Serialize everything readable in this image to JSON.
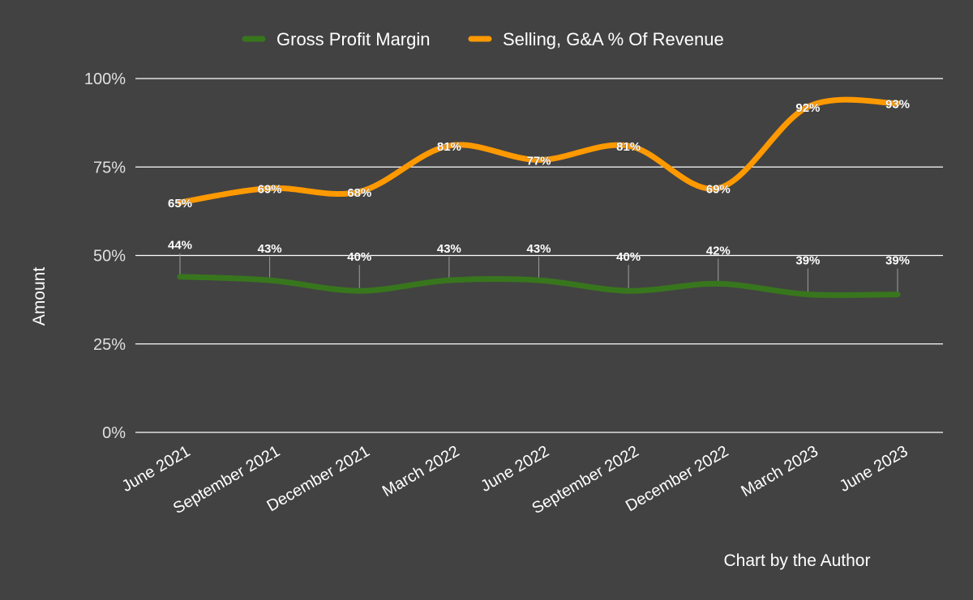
{
  "chart_data": {
    "type": "line",
    "categories": [
      "June 2021",
      "September 2021",
      "December 2021",
      "March 2022",
      "June 2022",
      "September 2022",
      "December 2022",
      "March 2023",
      "June 2023"
    ],
    "series": [
      {
        "name": "Gross Profit Margin",
        "color": "#38761d",
        "values": [
          44,
          43,
          40,
          43,
          43,
          40,
          42,
          39,
          39
        ],
        "labels": [
          "44%",
          "43%",
          "40%",
          "43%",
          "43%",
          "40%",
          "42%",
          "39%",
          "39%"
        ]
      },
      {
        "name": "Selling, G&A % Of Revenue",
        "color": "#ff9900",
        "values": [
          65,
          69,
          68,
          81,
          77,
          81,
          69,
          92,
          93
        ],
        "labels": [
          "65%",
          "69%",
          "68%",
          "81%",
          "77%",
          "81%",
          "69%",
          "92%",
          "93%"
        ]
      }
    ],
    "ylabel": "Amount",
    "xlabel": "",
    "ylim": [
      0,
      100
    ],
    "yticks": [
      0,
      25,
      50,
      75,
      100
    ],
    "ytick_labels": [
      "0%",
      "25%",
      "50%",
      "75%",
      "100%"
    ],
    "grid": true,
    "legend": "top-center",
    "annotation": "Chart by the Author"
  }
}
